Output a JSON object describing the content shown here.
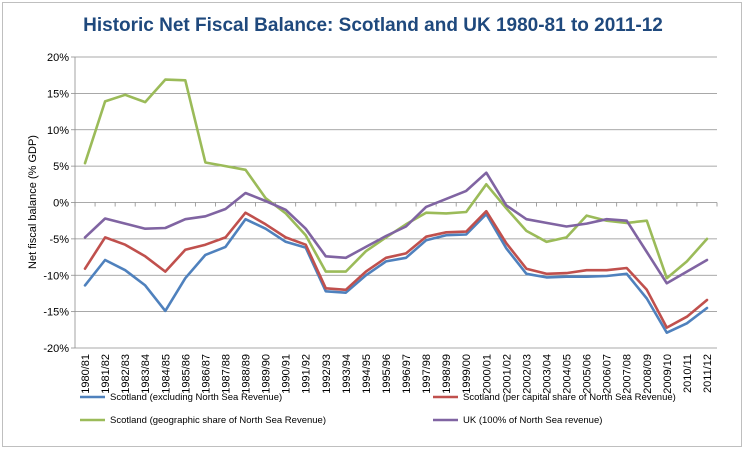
{
  "chart_data": {
    "type": "line",
    "title": "Historic Net Fiscal Balance: Scotland and UK 1980-81 to 2011-12",
    "ylabel": "Net fiscal balance (% GDP)",
    "xlabel": "",
    "ylim": [
      -20,
      20
    ],
    "yticks": [
      20,
      15,
      10,
      5,
      0,
      -5,
      -10,
      -15,
      -20
    ],
    "ytick_labels": [
      "20%",
      "15%",
      "10%",
      "5%",
      "0%",
      "-5%",
      "-10%",
      "-15%",
      "-20%"
    ],
    "grid": "horizontal",
    "legend_position": "bottom",
    "categories": [
      "1980/81",
      "1981/82",
      "1982/83",
      "1983/84",
      "1984/85",
      "1985/86",
      "1986/87",
      "1987/88",
      "1988/89",
      "1989/90",
      "1990/91",
      "1991/92",
      "1992/93",
      "1993/94",
      "1994/95",
      "1995/96",
      "1996/97",
      "1997/98",
      "1998/99",
      "1999/00",
      "2000/01",
      "2001/02",
      "2002/03",
      "2003/04",
      "2004/05",
      "2005/06",
      "2006/07",
      "2007/08",
      "2008/09",
      "2009/10",
      "2010/11",
      "2011/12"
    ],
    "series": [
      {
        "name": "Scotland (excluding North Sea Revenue)",
        "color": "#4f81bd",
        "values": [
          -11.4,
          -7.9,
          -9.3,
          -11.4,
          -14.9,
          -10.4,
          -7.2,
          -6.1,
          -2.3,
          -3.6,
          -5.4,
          -6.2,
          -12.2,
          -12.4,
          -10.0,
          -8.1,
          -7.6,
          -5.2,
          -4.5,
          -4.4,
          -1.6,
          -6.3,
          -9.8,
          -10.3,
          -10.2,
          -10.2,
          -10.1,
          -9.8,
          -13.2,
          -17.9,
          -16.6,
          -14.5
        ]
      },
      {
        "name": "Scotland (per capital share of North Sea Revenue)",
        "color": "#c0504d",
        "values": [
          -9.1,
          -4.8,
          -5.8,
          -7.4,
          -9.5,
          -6.5,
          -5.8,
          -4.8,
          -1.4,
          -3.0,
          -4.8,
          -5.8,
          -11.8,
          -12.0,
          -9.5,
          -7.6,
          -7.0,
          -4.7,
          -4.1,
          -4.0,
          -1.2,
          -5.6,
          -9.1,
          -9.8,
          -9.7,
          -9.3,
          -9.3,
          -9.0,
          -12.0,
          -17.2,
          -15.7,
          -13.4
        ]
      },
      {
        "name": "Scotland (geographic share of North Sea Revenue)",
        "color": "#9bbb59",
        "values": [
          5.4,
          13.9,
          14.8,
          13.8,
          16.9,
          16.8,
          5.5,
          5.0,
          4.5,
          0.6,
          -1.5,
          -4.5,
          -9.5,
          -9.5,
          -6.7,
          -4.8,
          -3.0,
          -1.4,
          -1.5,
          -1.3,
          2.5,
          -0.8,
          -3.9,
          -5.4,
          -4.8,
          -1.8,
          -2.5,
          -2.8,
          -2.5,
          -10.4,
          -8.1,
          -5.0
        ]
      },
      {
        "name": "UK (100% of North Sea revenue)",
        "color": "#8064a2",
        "values": [
          -4.8,
          -2.2,
          -2.9,
          -3.6,
          -3.5,
          -2.3,
          -1.9,
          -0.9,
          1.3,
          0.2,
          -1.0,
          -3.6,
          -7.4,
          -7.6,
          -6.1,
          -4.6,
          -3.3,
          -0.6,
          0.5,
          1.6,
          4.1,
          -0.4,
          -2.3,
          -2.8,
          -3.3,
          -2.9,
          -2.3,
          -2.5,
          -6.8,
          -11.1,
          -9.5,
          -7.9
        ]
      }
    ]
  }
}
